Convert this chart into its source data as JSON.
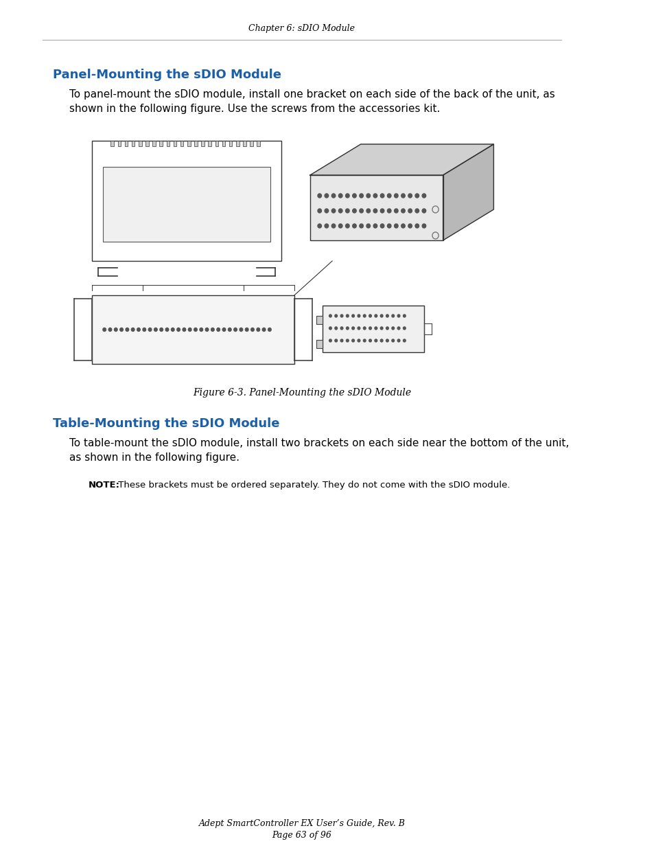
{
  "header_text": "Chapter 6: sDIO Module",
  "header_line_color": "#aaaaaa",
  "section1_title": "Panel-Mounting the sDIO Module",
  "section1_title_color": "#1a5fa8",
  "section1_body": "To panel-mount the sDIO module, install one bracket on each side of the back of the unit, as\nshown in the following figure. Use the screws from the accessories kit.",
  "figure_caption": "Figure 6-3. Panel-Mounting the sDIO Module",
  "section2_title": "Table-Mounting the sDIO Module",
  "section2_title_color": "#1a5fa8",
  "section2_body": "To table-mount the sDIO module, install two brackets on each side near the bottom of the unit,\nas shown in the following figure.",
  "note_bold": "NOTE:",
  "note_body": " These brackets must be ordered separately. They do not come with the sDIO module.",
  "footer_line1": "Adept SmartController EX User’s Guide, Rev. B",
  "footer_line2": "Page 63 of 96",
  "bg_color": "#ffffff",
  "text_color": "#000000",
  "body_fontsize": 11,
  "header_fontsize": 9,
  "section_title_fontsize": 13,
  "caption_fontsize": 10,
  "footer_fontsize": 9,
  "note_fontsize": 9.5
}
